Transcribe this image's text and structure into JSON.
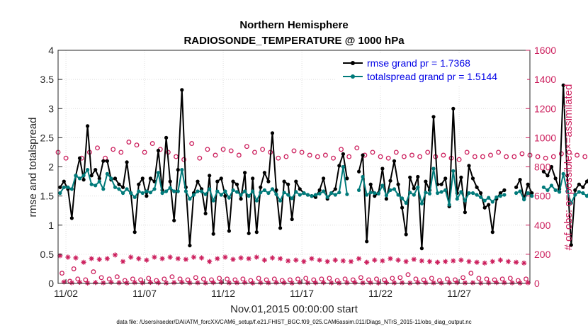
{
  "chart_data": {
    "type": "line",
    "title": "Northern Hemisphere",
    "subtitle": "RADIOSONDE_TEMPERATURE @ 1000 hPa",
    "xlabel": "Nov.01,2015 00:00:00 start",
    "ylabel": "rmse and totalspread",
    "ylabel_right": "# of obs: o=possible; ×=assimilated",
    "xlim": [
      1.5,
      31.5
    ],
    "ylim": [
      0,
      4
    ],
    "ylim_right": [
      0,
      1600
    ],
    "xticks": [
      2,
      7,
      12,
      17,
      22,
      27
    ],
    "xtick_labels": [
      "11/02",
      "11/07",
      "11/12",
      "11/17",
      "11/22",
      "11/27"
    ],
    "yticks": [
      0,
      0.5,
      1,
      1.5,
      2,
      2.5,
      3,
      3.5,
      4
    ],
    "ytick_labels": [
      "0",
      "0.5",
      "1",
      "1.5",
      "2",
      "2.5",
      "3",
      "3.5",
      "4"
    ],
    "yticks_right": [
      0,
      200,
      400,
      600,
      800,
      1000,
      1200,
      1400,
      1600
    ],
    "ytick_labels_right": [
      "0",
      "200",
      "400",
      "600",
      "800",
      "1000",
      "1200",
      "1400",
      "1600"
    ],
    "legend_position": "top-right",
    "footnote": "data file: /Users/raeder/DAI/ATM_forcXX/CAM6_setup/f.e21.FHIST_BGC.f09_025.CAM6assim.011/Diags_NTrS_2015-11/obs_diag_output.nc",
    "series": [
      {
        "name": "rmse grand pr = 1.7368",
        "color": "#000000",
        "marker": "dot",
        "axis": "left",
        "x_start": 1.625,
        "x_step": 0.25,
        "values": [
          1.65,
          1.75,
          1.62,
          1.12,
          1.85,
          2.15,
          1.78,
          2.7,
          1.85,
          1.95,
          1.8,
          2.1,
          2.1,
          1.78,
          1.8,
          1.7,
          1.65,
          2.08,
          1.55,
          0.88,
          1.7,
          1.8,
          1.5,
          1.8,
          1.75,
          2.28,
          1.6,
          2.5,
          1.75,
          1.08,
          1.95,
          3.32,
          1.65,
          0.65,
          1.55,
          1.75,
          1.62,
          1.2,
          1.85,
          0.85,
          1.75,
          1.8,
          1.5,
          0.9,
          1.75,
          1.7,
          1.45,
          1.9,
          0.86,
          1.8,
          0.88,
          1.65,
          1.9,
          1.75,
          2.58,
          1.6,
          0.95,
          1.75,
          1.7,
          1.1,
          1.75,
          1.62,
          1.55,
          1.52,
          1.5,
          1.48,
          1.6,
          1.8,
          1.45,
          1.55,
          1.62,
          2.02,
          2.22,
          1.8,
          null,
          null,
          1.92,
          2.2,
          0.72,
          1.7,
          1.5,
          1.55,
          1.97,
          1.45,
          1.76,
          2.1,
          1.7,
          1.3,
          0.84,
          1.82,
          1.63,
          1.83,
          0.6,
          1.75,
          1.6,
          2.86,
          1.7,
          1.7,
          1.8,
          1.32,
          3.0,
          1.55,
          1.82,
          1.22,
          2.02,
          1.8,
          1.65,
          1.55,
          1.3,
          1.35,
          0.88,
          1.45,
          1.55,
          1.6,
          null,
          null,
          1.65,
          1.78,
          1.45,
          1.7,
          1.55,
          null,
          null,
          1.92,
          1.85,
          2.0,
          1.8,
          1.62,
          3.4,
          1.85,
          0.66,
          1.6,
          1.7,
          1.65,
          1.75,
          1.85,
          2.05,
          1.9,
          1.55,
          1.76,
          1.66,
          2.5,
          1.7,
          1.05,
          1.7,
          1.32
        ]
      },
      {
        "name": "totalspread grand pr = 1.5144",
        "color": "#007a7a",
        "marker": "dot",
        "axis": "left",
        "x_start": 1.625,
        "x_step": 0.25,
        "values": [
          1.55,
          1.65,
          1.65,
          1.62,
          1.85,
          1.8,
          1.85,
          1.95,
          1.7,
          1.68,
          1.75,
          1.62,
          1.88,
          1.8,
          1.65,
          1.62,
          1.55,
          1.62,
          1.55,
          1.48,
          1.58,
          1.55,
          1.58,
          1.56,
          1.62,
          1.9,
          1.55,
          1.58,
          1.64,
          1.58,
          1.58,
          1.95,
          1.58,
          1.45,
          1.52,
          1.58,
          1.58,
          1.53,
          1.62,
          1.42,
          1.58,
          1.52,
          1.58,
          1.47,
          1.6,
          1.57,
          1.52,
          1.58,
          1.5,
          1.58,
          1.42,
          1.56,
          1.6,
          1.55,
          1.62,
          1.53,
          1.42,
          1.56,
          1.52,
          1.46,
          1.57,
          1.52,
          1.55,
          1.52,
          1.5,
          1.52,
          1.54,
          1.58,
          1.48,
          1.55,
          1.52,
          1.56,
          2.0,
          1.53,
          null,
          null,
          1.6,
          1.83,
          1.52,
          1.56,
          1.55,
          1.54,
          1.68,
          1.51,
          1.6,
          1.62,
          1.52,
          1.46,
          1.38,
          1.56,
          1.52,
          1.65,
          1.37,
          1.56,
          1.54,
          1.97,
          1.55,
          1.57,
          1.6,
          1.35,
          1.93,
          1.45,
          1.57,
          1.42,
          1.55,
          1.55,
          1.52,
          1.48,
          1.42,
          1.47,
          1.4,
          1.48,
          1.5,
          1.52,
          null,
          null,
          1.55,
          1.58,
          1.44,
          1.55,
          1.5,
          null,
          null,
          1.65,
          1.6,
          1.68,
          1.6,
          1.57,
          1.88,
          1.58,
          1.38,
          1.52,
          1.57,
          1.55,
          1.5,
          1.6,
          1.65,
          1.58,
          1.53,
          1.62,
          1.57,
          1.75,
          1.6,
          1.4,
          1.62,
          1.45
        ]
      },
      {
        "name": "possible",
        "color": "#cc1f5d",
        "marker": "circle",
        "axis": "right",
        "x_start": 1.5,
        "x_step": 0.5,
        "values": [
          900,
          860,
          100,
          860,
          900,
          930,
          860,
          920,
          900,
          970,
          950,
          900,
          960,
          920,
          900,
          870,
          850,
          960,
          860,
          920,
          880,
          920,
          910,
          880,
          940,
          900,
          920,
          900,
          860,
          870,
          910,
          900,
          880,
          870,
          880,
          860,
          920,
          870,
          930,
          880,
          900,
          870,
          860,
          900,
          870,
          880,
          870,
          900,
          870,
          880,
          860,
          850,
          900,
          870,
          870,
          880,
          900,
          870,
          870,
          890,
          880,
          870,
          860,
          870,
          890,
          900,
          880,
          870,
          860,
          850,
          870,
          880,
          840,
          820,
          880,
          830,
          930,
          900,
          940,
          860,
          870,
          910,
          890,
          840,
          870,
          870,
          860,
          870,
          880,
          870,
          880,
          860,
          890,
          860,
          880,
          850,
          860,
          920,
          860,
          880,
          860,
          870,
          860,
          860,
          850,
          870,
          850,
          880,
          870,
          850,
          860,
          850,
          870,
          860,
          870,
          880,
          850,
          830,
          870,
          860,
          860,
          850
        ]
      },
      {
        "name": "possible (low)",
        "color": "#cc1f5d",
        "marker": "circle",
        "axis": "right",
        "x_start": 1.75,
        "x_step": 0.5,
        "values": [
          70,
          15,
          30,
          25,
          80,
          40,
          30,
          45,
          20,
          30,
          25,
          35,
          20,
          30,
          45,
          30,
          25,
          40,
          30,
          25,
          35,
          30,
          25,
          30,
          20,
          35,
          25,
          30,
          20,
          25,
          30,
          35,
          25,
          30,
          35,
          20,
          30,
          25,
          40,
          25,
          30,
          25,
          35,
          40,
          60,
          30,
          25,
          35,
          20,
          30,
          25,
          40,
          70,
          35,
          30,
          25,
          30,
          35,
          20,
          30
        ]
      },
      {
        "name": "assimilated",
        "color": "#cc1f5d",
        "marker": "asterisk",
        "axis": "right",
        "x_start": 1.625,
        "x_step": 0.5,
        "values": [
          190,
          180,
          175,
          145,
          170,
          165,
          170,
          195,
          150,
          180,
          170,
          160,
          180,
          170,
          180,
          170,
          165,
          180,
          175,
          150,
          170,
          180,
          165,
          175,
          170,
          180,
          160,
          175,
          170,
          155,
          160,
          150,
          170,
          160,
          150,
          160,
          155,
          150,
          170,
          145,
          160,
          155,
          170,
          160,
          150,
          165,
          155,
          150,
          145,
          150,
          155,
          160,
          150,
          145,
          140,
          150,
          160,
          150,
          145,
          140
        ]
      },
      {
        "name": "assimilated (low)",
        "color": "#cc1f5d",
        "marker": "asterisk",
        "axis": "right",
        "x_start": 1.875,
        "x_step": 0.5,
        "values": [
          10,
          5,
          8,
          3,
          6,
          4,
          8,
          5,
          3,
          6,
          4,
          7,
          5,
          3,
          6,
          8,
          4,
          5,
          3,
          6,
          7,
          4,
          5,
          6,
          3,
          5,
          4,
          6,
          5,
          3,
          7,
          4,
          5,
          6,
          4,
          3,
          5,
          6,
          4,
          5,
          3,
          6,
          4,
          5,
          3,
          6,
          5,
          4,
          3,
          5,
          6,
          4,
          5,
          3,
          4,
          6,
          5,
          4,
          3,
          5
        ]
      }
    ]
  }
}
